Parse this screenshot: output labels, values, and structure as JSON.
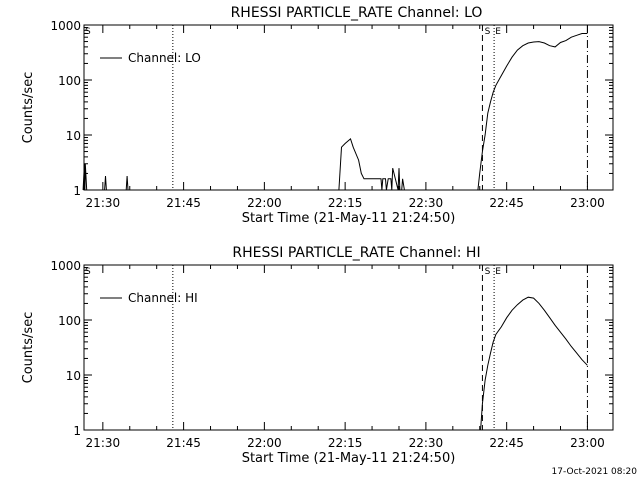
{
  "footer": {
    "timestamp": "17-Oct-2021 08:20"
  },
  "chart_data": [
    {
      "type": "line",
      "title": "RHESSI PARTICLE_RATE Channel: LO",
      "xlabel": "Start Time (21-May-11 21:24:50)",
      "ylabel": "Counts/sec",
      "yscale": "log",
      "ylim": [
        1,
        1000
      ],
      "xlim": [
        "21:26:30",
        "23:04:45"
      ],
      "xticks": [
        "21:30",
        "21:45",
        "22:00",
        "22:15",
        "22:30",
        "22:45",
        "23:00"
      ],
      "yticks": [
        "1",
        "10",
        "100",
        "1000"
      ],
      "legend": {
        "position": "top-left",
        "entries": [
          "Channel: LO"
        ]
      },
      "markers": [
        {
          "label": "S",
          "time": "22:40:30",
          "style": "dashed"
        },
        {
          "label": "E",
          "time": "22:42:40",
          "style": "dotted"
        }
      ],
      "vlines": [
        {
          "time": "21:43:00",
          "style": "dotted"
        },
        {
          "time": "23:00:00",
          "style": "dash-dot"
        }
      ],
      "series": [
        {
          "name": "Channel: LO",
          "x": [
            "21:26:20",
            "21:26:35",
            "21:26:40",
            "21:26:45",
            "21:27:00",
            "21:30:20",
            "21:30:30",
            "21:30:40",
            "21:34:20",
            "21:34:30",
            "21:34:40",
            "22:13:50",
            "22:14:20",
            "22:15:00",
            "22:16:00",
            "22:16:30",
            "22:17:30",
            "22:18:00",
            "22:18:30",
            "22:19:00",
            "22:19:30",
            "22:21:40",
            "22:21:50",
            "22:22:00",
            "22:22:30",
            "22:22:40",
            "22:23:00",
            "22:23:30",
            "22:23:40",
            "22:23:50",
            "22:24:50",
            "22:25:00",
            "22:25:10",
            "22:25:30",
            "22:25:40",
            "22:26:00",
            "22:39:40",
            "22:40:00",
            "22:40:30",
            "22:41:00",
            "22:41:30",
            "22:42:00",
            "22:42:30",
            "22:43:00",
            "22:44:00",
            "22:45:00",
            "22:46:00",
            "22:47:00",
            "22:48:00",
            "22:49:00",
            "22:50:00",
            "22:51:00",
            "22:52:00",
            "22:53:00",
            "22:54:00",
            "22:55:00",
            "22:56:00",
            "22:57:00",
            "22:58:00",
            "22:59:00",
            "23:00:00"
          ],
          "y": [
            1,
            3,
            1,
            3,
            1,
            1,
            1.8,
            1,
            1,
            1.8,
            1,
            1,
            6,
            7,
            8.5,
            6,
            3.5,
            2,
            1.6,
            1.6,
            1.6,
            1.6,
            1,
            1.6,
            1.6,
            1,
            1.6,
            1.6,
            1,
            2.5,
            1,
            2.5,
            1,
            1,
            1.6,
            1,
            1,
            2,
            5,
            10,
            25,
            40,
            60,
            80,
            120,
            180,
            260,
            350,
            420,
            470,
            490,
            500,
            470,
            420,
            400,
            480,
            520,
            600,
            650,
            700,
            700
          ]
        }
      ]
    },
    {
      "type": "line",
      "title": "RHESSI PARTICLE_RATE Channel: HI",
      "xlabel": "Start Time (21-May-11 21:24:50)",
      "ylabel": "Counts/sec",
      "yscale": "log",
      "ylim": [
        1,
        1000
      ],
      "xlim": [
        "21:26:30",
        "23:04:45"
      ],
      "xticks": [
        "21:30",
        "21:45",
        "22:00",
        "22:15",
        "22:30",
        "22:45",
        "23:00"
      ],
      "yticks": [
        "1",
        "10",
        "100",
        "1000"
      ],
      "legend": {
        "position": "top-left",
        "entries": [
          "Channel: HI"
        ]
      },
      "markers": [
        {
          "label": "S",
          "time": "22:40:30",
          "style": "dashed"
        },
        {
          "label": "E",
          "time": "22:42:40",
          "style": "dotted"
        }
      ],
      "vlines": [
        {
          "time": "21:43:00",
          "style": "dotted"
        },
        {
          "time": "23:00:00",
          "style": "dash-dot"
        }
      ],
      "series": [
        {
          "name": "Channel: HI",
          "x": [
            "22:40:10",
            "22:40:30",
            "22:41:00",
            "22:41:30",
            "22:42:00",
            "22:42:30",
            "22:43:00",
            "22:44:00",
            "22:45:00",
            "22:46:00",
            "22:47:00",
            "22:48:00",
            "22:49:00",
            "22:50:00",
            "22:51:00",
            "22:52:00",
            "22:53:00",
            "22:54:00",
            "22:55:00",
            "22:56:00",
            "22:57:00",
            "22:58:00",
            "22:59:00",
            "23:00:00"
          ],
          "y": [
            1,
            3,
            8,
            15,
            25,
            40,
            55,
            75,
            110,
            150,
            190,
            230,
            260,
            250,
            200,
            150,
            110,
            80,
            60,
            45,
            33,
            25,
            19,
            15
          ]
        }
      ]
    }
  ]
}
